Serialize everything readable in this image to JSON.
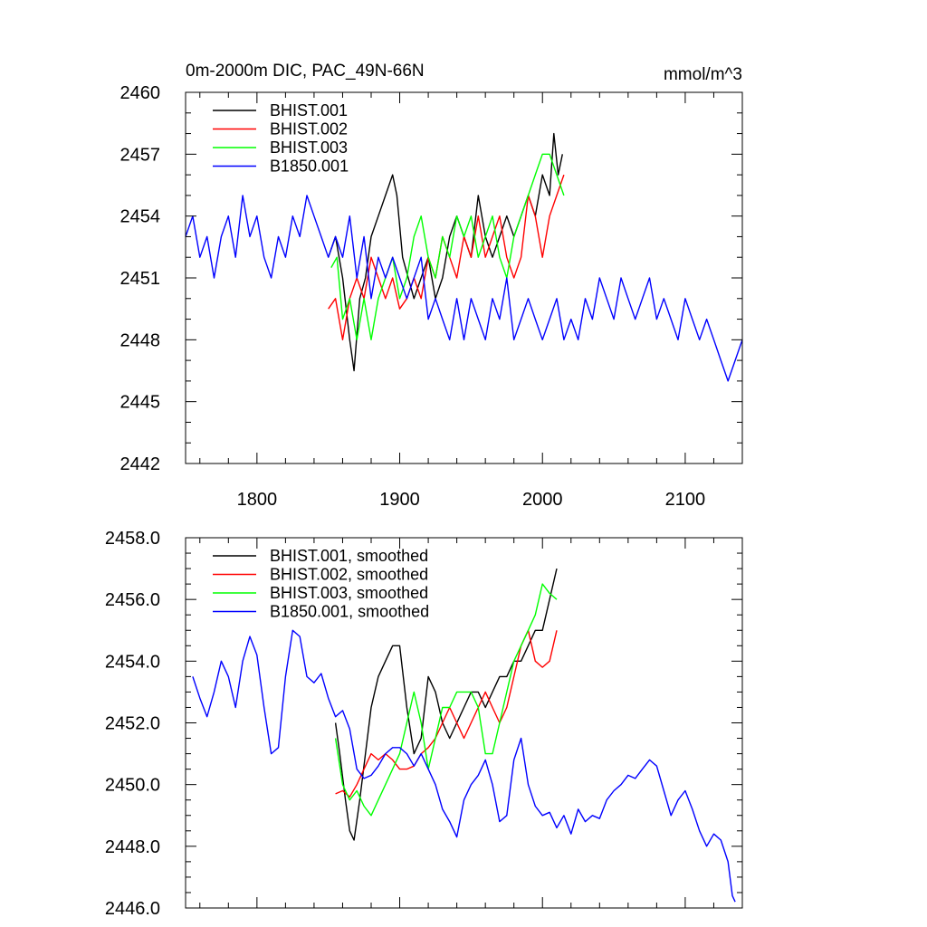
{
  "chart_data": [
    {
      "type": "line",
      "title": "0m-2000m DIC, PAC_49N-66N",
      "units": "mmol/m^3",
      "xlim": [
        1750,
        2140
      ],
      "ylim": [
        2442,
        2460
      ],
      "xticks": [
        1800,
        1900,
        2000,
        2100
      ],
      "xtick_labels": [
        "1800",
        "1900",
        "2000",
        "2100"
      ],
      "yticks": [
        2442,
        2445,
        2448,
        2451,
        2454,
        2457,
        2460
      ],
      "ytick_labels": [
        "2442",
        "2445",
        "2448",
        "2451",
        "2454",
        "2457",
        "2460"
      ],
      "legend_position": "top-left",
      "series": [
        {
          "name": "BHIST.001",
          "color": "#000000",
          "x": [
            1850,
            1855,
            1860,
            1865,
            1868,
            1872,
            1876,
            1880,
            1885,
            1890,
            1895,
            1898,
            1902,
            1906,
            1910,
            1915,
            1920,
            1925,
            1930,
            1935,
            1940,
            1945,
            1950,
            1955,
            1960,
            1965,
            1970,
            1975,
            1980,
            1985,
            1990,
            1995,
            2000,
            2005,
            2008,
            2011,
            2014
          ],
          "y": [
            2452,
            2453,
            2451,
            2448,
            2446.5,
            2450,
            2451,
            2453,
            2454,
            2455,
            2456,
            2455,
            2452,
            2451,
            2450,
            2451,
            2452,
            2450,
            2451,
            2453,
            2454,
            2453,
            2452,
            2455,
            2453,
            2452,
            2453,
            2454,
            2453,
            2454,
            2455,
            2454,
            2456,
            2455,
            2458,
            2456,
            2457
          ]
        },
        {
          "name": "BHIST.002",
          "color": "#ff0000",
          "x": [
            1850,
            1855,
            1860,
            1865,
            1870,
            1875,
            1880,
            1885,
            1890,
            1895,
            1900,
            1905,
            1910,
            1915,
            1920,
            1925,
            1930,
            1935,
            1940,
            1945,
            1950,
            1955,
            1960,
            1965,
            1970,
            1975,
            1980,
            1985,
            1990,
            1995,
            2000,
            2005,
            2010,
            2015
          ],
          "y": [
            2449.5,
            2450,
            2448,
            2450,
            2451,
            2450,
            2452,
            2451,
            2450,
            2451,
            2449.5,
            2450,
            2451,
            2450,
            2452,
            2451,
            2453,
            2452,
            2451,
            2453,
            2452,
            2454,
            2452,
            2453,
            2454,
            2452,
            2451,
            2452,
            2455,
            2454,
            2452,
            2454,
            2455,
            2456
          ]
        },
        {
          "name": "BHIST.003",
          "color": "#00ff00",
          "x": [
            1852,
            1856,
            1860,
            1865,
            1870,
            1875,
            1880,
            1885,
            1890,
            1895,
            1900,
            1905,
            1910,
            1915,
            1920,
            1925,
            1930,
            1935,
            1940,
            1945,
            1950,
            1955,
            1960,
            1965,
            1970,
            1975,
            1980,
            1985,
            1990,
            1995,
            2000,
            2005,
            2010,
            2015
          ],
          "y": [
            2451.5,
            2452,
            2449,
            2450,
            2448,
            2450,
            2448,
            2450,
            2451,
            2452,
            2450,
            2451,
            2453,
            2454,
            2452,
            2451,
            2453,
            2452,
            2454,
            2453,
            2454,
            2452,
            2453,
            2454,
            2452,
            2451,
            2453,
            2454,
            2455,
            2456,
            2457,
            2457,
            2456,
            2455
          ]
        },
        {
          "name": "B1850.001",
          "color": "#0000ff",
          "x": [
            1750,
            1755,
            1760,
            1765,
            1770,
            1775,
            1780,
            1785,
            1790,
            1795,
            1800,
            1805,
            1810,
            1815,
            1820,
            1825,
            1830,
            1835,
            1840,
            1845,
            1850,
            1855,
            1860,
            1865,
            1870,
            1875,
            1880,
            1885,
            1890,
            1895,
            1900,
            1905,
            1910,
            1915,
            1920,
            1925,
            1930,
            1935,
            1940,
            1945,
            1950,
            1955,
            1960,
            1965,
            1970,
            1975,
            1980,
            1985,
            1990,
            1995,
            2000,
            2005,
            2010,
            2015,
            2020,
            2025,
            2030,
            2035,
            2040,
            2045,
            2050,
            2055,
            2060,
            2065,
            2070,
            2075,
            2080,
            2085,
            2090,
            2095,
            2100,
            2105,
            2110,
            2115,
            2120,
            2125,
            2130,
            2135,
            2140
          ],
          "y": [
            2453,
            2454,
            2452,
            2453,
            2451,
            2453,
            2454,
            2452,
            2455,
            2453,
            2454,
            2452,
            2451,
            2453,
            2452,
            2454,
            2453,
            2455,
            2454,
            2453,
            2452,
            2453,
            2452,
            2454,
            2451,
            2453,
            2450,
            2452,
            2451,
            2452,
            2451,
            2450,
            2451,
            2452,
            2449,
            2450,
            2449,
            2448,
            2450,
            2448,
            2450,
            2449,
            2448,
            2450,
            2449,
            2451,
            2448,
            2449,
            2450,
            2449,
            2448,
            2449,
            2450,
            2448,
            2449,
            2448,
            2450,
            2449,
            2451,
            2450,
            2449,
            2451,
            2450,
            2449,
            2450,
            2451,
            2449,
            2450,
            2449,
            2448,
            2450,
            2449,
            2448,
            2449,
            2448,
            2447,
            2446,
            2447,
            2448
          ]
        }
      ]
    },
    {
      "type": "line",
      "title": "",
      "xlim": [
        1750,
        2140
      ],
      "ylim": [
        2446.0,
        2458.0
      ],
      "xticks": [
        1800,
        1900,
        2000,
        2100
      ],
      "yticks": [
        2446,
        2448,
        2450,
        2452,
        2454,
        2456,
        2458
      ],
      "ytick_labels": [
        "2446.0",
        "2448.0",
        "2450.0",
        "2452.0",
        "2454.0",
        "2456.0",
        "2458.0"
      ],
      "legend_position": "top-left",
      "series": [
        {
          "name": "BHIST.001, smoothed",
          "color": "#000000",
          "x": [
            1855,
            1858,
            1862,
            1865,
            1868,
            1872,
            1876,
            1880,
            1885,
            1890,
            1895,
            1900,
            1905,
            1910,
            1915,
            1920,
            1925,
            1930,
            1935,
            1940,
            1945,
            1950,
            1955,
            1960,
            1965,
            1970,
            1975,
            1980,
            1985,
            1990,
            1995,
            2000,
            2005,
            2010
          ],
          "y": [
            2452,
            2451,
            2449.5,
            2448.5,
            2448.2,
            2449.5,
            2451,
            2452.5,
            2453.5,
            2454,
            2454.5,
            2454.5,
            2452.5,
            2451,
            2451.5,
            2453.5,
            2453,
            2452,
            2451.5,
            2452,
            2452.5,
            2453,
            2453,
            2452.5,
            2453,
            2453.5,
            2453.5,
            2454,
            2454,
            2454.5,
            2455,
            2455,
            2456,
            2457
          ]
        },
        {
          "name": "BHIST.002, smoothed",
          "color": "#ff0000",
          "x": [
            1855,
            1860,
            1865,
            1870,
            1875,
            1880,
            1885,
            1890,
            1895,
            1900,
            1905,
            1910,
            1915,
            1920,
            1925,
            1930,
            1935,
            1940,
            1945,
            1950,
            1955,
            1960,
            1965,
            1970,
            1975,
            1980,
            1985,
            1990,
            1995,
            2000,
            2005,
            2010
          ],
          "y": [
            2449.7,
            2449.8,
            2449.6,
            2450,
            2450.5,
            2451,
            2450.8,
            2451,
            2450.8,
            2450.5,
            2450.5,
            2450.6,
            2451,
            2451.2,
            2451.5,
            2452,
            2452.5,
            2452,
            2451.5,
            2452,
            2452.5,
            2453,
            2452.5,
            2452,
            2452.5,
            2453.5,
            2454.5,
            2455,
            2454,
            2453.8,
            2454,
            2455
          ]
        },
        {
          "name": "BHIST.003, smoothed",
          "color": "#00ff00",
          "x": [
            1855,
            1860,
            1865,
            1870,
            1875,
            1880,
            1885,
            1890,
            1895,
            1900,
            1905,
            1910,
            1915,
            1920,
            1925,
            1930,
            1935,
            1940,
            1945,
            1950,
            1955,
            1960,
            1965,
            1970,
            1975,
            1980,
            1985,
            1990,
            1995,
            2000,
            2005,
            2010
          ],
          "y": [
            2451.5,
            2450,
            2449.5,
            2449.8,
            2449.3,
            2449,
            2449.5,
            2450,
            2450.5,
            2451,
            2452,
            2453,
            2452,
            2450.5,
            2451.5,
            2452.5,
            2452.5,
            2453,
            2453,
            2453,
            2452.5,
            2451,
            2451,
            2452,
            2453,
            2454,
            2454.5,
            2455,
            2455.5,
            2456.5,
            2456.2,
            2456
          ]
        },
        {
          "name": "B1850.001, smoothed",
          "color": "#0000ff",
          "x": [
            1755,
            1760,
            1765,
            1770,
            1775,
            1780,
            1785,
            1790,
            1795,
            1800,
            1805,
            1810,
            1815,
            1820,
            1825,
            1830,
            1835,
            1840,
            1845,
            1850,
            1855,
            1860,
            1865,
            1870,
            1875,
            1880,
            1885,
            1890,
            1895,
            1900,
            1905,
            1910,
            1915,
            1920,
            1925,
            1930,
            1935,
            1940,
            1945,
            1950,
            1955,
            1960,
            1965,
            1970,
            1975,
            1980,
            1985,
            1990,
            1995,
            2000,
            2005,
            2010,
            2015,
            2020,
            2025,
            2030,
            2035,
            2040,
            2045,
            2050,
            2055,
            2060,
            2065,
            2070,
            2075,
            2080,
            2085,
            2090,
            2095,
            2100,
            2105,
            2110,
            2115,
            2120,
            2125,
            2130,
            2133,
            2135
          ],
          "y": [
            2453.5,
            2452.8,
            2452.2,
            2453,
            2454,
            2453.5,
            2452.5,
            2454,
            2454.8,
            2454.2,
            2452.5,
            2451,
            2451.2,
            2453.5,
            2455,
            2454.8,
            2453.5,
            2453.3,
            2453.6,
            2452.8,
            2452.2,
            2452.4,
            2451.8,
            2450.5,
            2450.2,
            2450.3,
            2450.6,
            2451,
            2451.2,
            2451.2,
            2451,
            2450.6,
            2451,
            2450.5,
            2450,
            2449.2,
            2448.8,
            2448.3,
            2449.5,
            2450,
            2450.3,
            2450.8,
            2450,
            2448.8,
            2449,
            2450.8,
            2451.5,
            2450,
            2449.3,
            2449,
            2449.1,
            2448.6,
            2449,
            2448.4,
            2449.2,
            2448.8,
            2449,
            2448.9,
            2449.5,
            2449.8,
            2450,
            2450.3,
            2450.2,
            2450.5,
            2450.8,
            2450.6,
            2449.8,
            2449,
            2449.5,
            2449.8,
            2449.2,
            2448.5,
            2448,
            2448.4,
            2448.2,
            2447.5,
            2446.4,
            2446.2
          ]
        }
      ]
    }
  ]
}
